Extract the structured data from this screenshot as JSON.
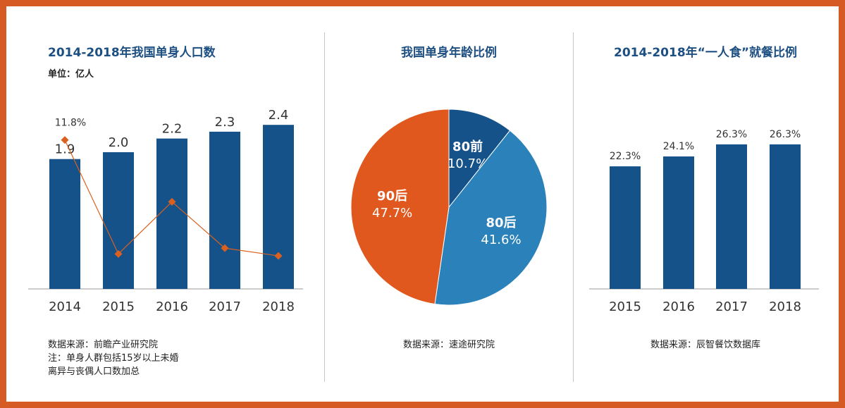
{
  "colors": {
    "frame": "#d65a24",
    "bar": "#15528a",
    "line": "#d9601e",
    "pie_blue_dark": "#15528a",
    "pie_blue_light": "#2b82bb",
    "pie_orange": "#e0581e"
  },
  "panel1": {
    "title": "2014-2018年我国单身人口数",
    "unit": "单位：亿人",
    "notes": [
      "数据来源：前瞻产业研究院",
      "注：单身人群包括15岁以上未婚",
      "离异与丧偶人口数加总"
    ]
  },
  "panel2": {
    "title": "我国单身年龄比例",
    "note": "数据来源：速途研究院"
  },
  "panel3": {
    "title": "2014-2018年“一人食”就餐比例",
    "note": "数据来源：辰智餐饮数据库"
  },
  "chart_data": [
    {
      "type": "bar",
      "title": "2014-2018年我国单身人口数",
      "ylabel": "单位：亿人",
      "categories": [
        "2014",
        "2015",
        "2016",
        "2017",
        "2018"
      ],
      "series": [
        {
          "values": [
            1.9,
            2.0,
            2.2,
            2.3,
            2.4
          ],
          "labels": [
            "1.9",
            "2.0",
            "2.2",
            "2.3",
            "2.4"
          ]
        },
        {
          "type": "line",
          "values": [
            11.8,
            5.9,
            8.6,
            6.2,
            5.8
          ],
          "labels": [
            "11.8%",
            "",
            "",
            "",
            ""
          ]
        }
      ]
    },
    {
      "type": "pie",
      "title": "我国单身年龄比例",
      "slices": [
        {
          "name": "80前",
          "value": 10.7,
          "label": "10.7%"
        },
        {
          "name": "80后",
          "value": 41.6,
          "label": "41.6%"
        },
        {
          "name": "90后",
          "value": 47.7,
          "label": "47.7%"
        }
      ]
    },
    {
      "type": "bar",
      "title": "2014-2018年“一人食”就餐比例",
      "categories": [
        "2015",
        "2016",
        "2017",
        "2018"
      ],
      "values": [
        22.3,
        24.1,
        26.3,
        26.3
      ],
      "labels": [
        "22.3%",
        "24.1%",
        "26.3%",
        "26.3%"
      ]
    }
  ]
}
